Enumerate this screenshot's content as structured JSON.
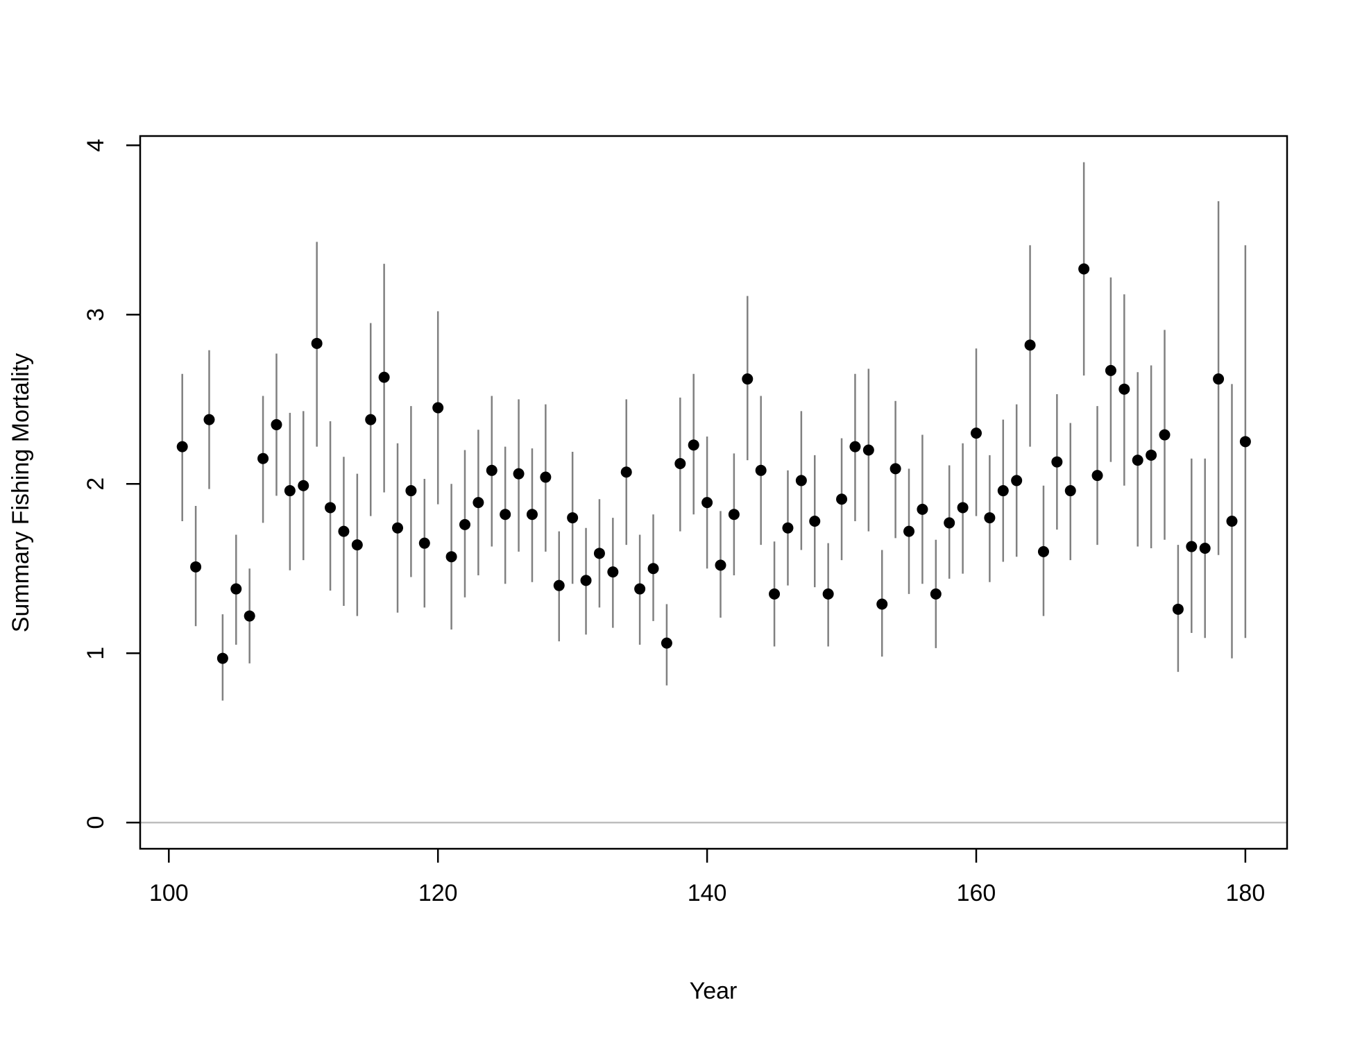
{
  "chart_data": {
    "type": "errorbar",
    "xlabel": "Year",
    "ylabel": "Summary Fishing Mortality",
    "xlim": [
      97.87,
      183.1
    ],
    "ylim": [
      -0.155,
      4.055
    ],
    "xticks": [
      100,
      120,
      140,
      160,
      180
    ],
    "yticks": [
      0,
      1,
      2,
      3,
      4
    ],
    "reference_line": 0,
    "reference_color": "#bebebe",
    "point_color": "#000000",
    "bar_color": "#808080",
    "x": [
      101,
      102,
      103,
      104,
      105,
      106,
      107,
      108,
      109,
      110,
      111,
      112,
      113,
      114,
      115,
      116,
      117,
      118,
      119,
      120,
      121,
      122,
      123,
      124,
      125,
      126,
      127,
      128,
      129,
      130,
      131,
      132,
      133,
      134,
      135,
      136,
      137,
      138,
      139,
      140,
      141,
      142,
      143,
      144,
      145,
      146,
      147,
      148,
      149,
      150,
      151,
      152,
      153,
      154,
      155,
      156,
      157,
      158,
      159,
      160,
      161,
      162,
      163,
      164,
      165,
      166,
      167,
      168,
      169,
      170,
      171,
      172,
      173,
      174,
      175,
      176,
      177,
      178,
      179,
      180
    ],
    "values": [
      2.22,
      1.51,
      2.38,
      0.97,
      1.38,
      1.22,
      2.15,
      2.35,
      1.96,
      1.99,
      2.83,
      1.86,
      1.72,
      1.64,
      2.38,
      2.63,
      1.74,
      1.96,
      1.65,
      2.45,
      1.57,
      1.76,
      1.89,
      2.08,
      1.82,
      2.06,
      1.82,
      2.04,
      1.4,
      1.8,
      1.43,
      1.59,
      1.48,
      2.07,
      1.38,
      1.5,
      1.06,
      2.12,
      2.23,
      1.89,
      1.52,
      1.82,
      2.62,
      2.08,
      1.35,
      1.74,
      2.02,
      1.78,
      1.35,
      1.91,
      2.22,
      2.2,
      1.29,
      2.09,
      1.72,
      1.85,
      1.35,
      1.77,
      1.86,
      2.3,
      1.8,
      1.96,
      2.02,
      2.82,
      1.6,
      2.13,
      1.96,
      3.27,
      2.05,
      2.67,
      2.56,
      2.14,
      2.17,
      2.29,
      1.26,
      1.63,
      1.62,
      2.62,
      1.78,
      2.25
    ],
    "lower": [
      1.78,
      1.16,
      1.97,
      0.72,
      1.05,
      0.94,
      1.77,
      1.93,
      1.49,
      1.55,
      2.22,
      1.37,
      1.28,
      1.22,
      1.81,
      1.95,
      1.24,
      1.45,
      1.27,
      1.88,
      1.14,
      1.33,
      1.46,
      1.63,
      1.41,
      1.6,
      1.42,
      1.6,
      1.07,
      1.41,
      1.11,
      1.27,
      1.15,
      1.64,
      1.05,
      1.19,
      0.81,
      1.72,
      1.82,
      1.5,
      1.21,
      1.46,
      2.14,
      1.64,
      1.04,
      1.4,
      1.61,
      1.39,
      1.04,
      1.55,
      1.78,
      1.72,
      0.98,
      1.68,
      1.35,
      1.41,
      1.03,
      1.44,
      1.47,
      1.81,
      1.42,
      1.54,
      1.57,
      2.22,
      1.22,
      1.73,
      1.55,
      2.64,
      1.64,
      2.13,
      1.99,
      1.63,
      1.62,
      1.67,
      0.89,
      1.12,
      1.09,
      1.58,
      0.97,
      1.09
    ],
    "upper": [
      2.65,
      1.87,
      2.79,
      1.23,
      1.7,
      1.5,
      2.52,
      2.77,
      2.42,
      2.43,
      3.43,
      2.37,
      2.16,
      2.06,
      2.95,
      3.3,
      2.24,
      2.46,
      2.03,
      3.02,
      2.0,
      2.2,
      2.32,
      2.52,
      2.22,
      2.5,
      2.21,
      2.47,
      1.72,
      2.19,
      1.74,
      1.91,
      1.8,
      2.5,
      1.7,
      1.82,
      1.29,
      2.51,
      2.65,
      2.28,
      1.84,
      2.18,
      3.11,
      2.52,
      1.66,
      2.08,
      2.43,
      2.17,
      1.65,
      2.27,
      2.65,
      2.68,
      1.61,
      2.49,
      2.09,
      2.29,
      1.67,
      2.11,
      2.24,
      2.8,
      2.17,
      2.38,
      2.47,
      3.41,
      1.99,
      2.53,
      2.36,
      3.9,
      2.46,
      3.22,
      3.12,
      2.66,
      2.7,
      2.91,
      1.64,
      2.15,
      2.15,
      3.67,
      2.59,
      3.41
    ]
  }
}
